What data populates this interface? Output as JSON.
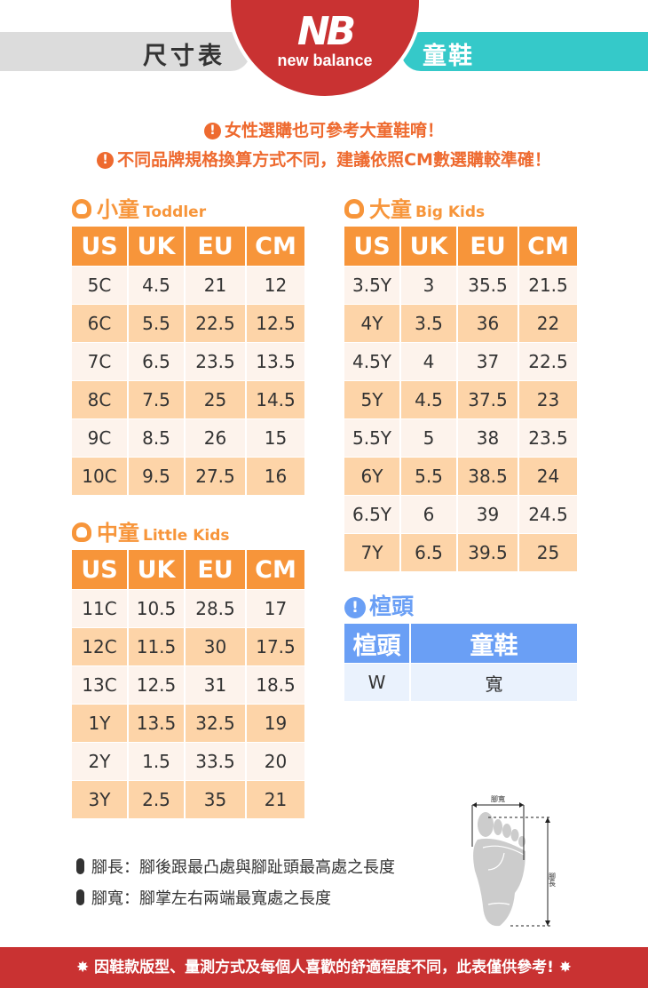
{
  "header": {
    "title": "尺寸表",
    "category": "童鞋",
    "brand_logo": "NB",
    "brand_name": "new balance"
  },
  "notes": [
    "女性選購也可參考大童鞋唷！",
    "不同品牌規格換算方式不同，建議依照CM數選購較準確！"
  ],
  "columns": [
    "US",
    "UK",
    "EU",
    "CM"
  ],
  "toddler": {
    "title": "小童",
    "subtitle": "Toddler",
    "rows": [
      [
        "5C",
        "4.5",
        "21",
        "12"
      ],
      [
        "6C",
        "5.5",
        "22.5",
        "12.5"
      ],
      [
        "7C",
        "6.5",
        "23.5",
        "13.5"
      ],
      [
        "8C",
        "7.5",
        "25",
        "14.5"
      ],
      [
        "9C",
        "8.5",
        "26",
        "15"
      ],
      [
        "10C",
        "9.5",
        "27.5",
        "16"
      ]
    ]
  },
  "little_kids": {
    "title": "中童",
    "subtitle": "Little Kids",
    "rows": [
      [
        "11C",
        "10.5",
        "28.5",
        "17"
      ],
      [
        "12C",
        "11.5",
        "30",
        "17.5"
      ],
      [
        "13C",
        "12.5",
        "31",
        "18.5"
      ],
      [
        "1Y",
        "13.5",
        "32.5",
        "19"
      ],
      [
        "2Y",
        "1.5",
        "33.5",
        "20"
      ],
      [
        "3Y",
        "2.5",
        "35",
        "21"
      ]
    ]
  },
  "big_kids": {
    "title": "大童",
    "subtitle": "Big Kids",
    "rows": [
      [
        "3.5Y",
        "3",
        "35.5",
        "21.5"
      ],
      [
        "4Y",
        "3.5",
        "36",
        "22"
      ],
      [
        "4.5Y",
        "4",
        "37",
        "22.5"
      ],
      [
        "5Y",
        "4.5",
        "37.5",
        "23"
      ],
      [
        "5.5Y",
        "5",
        "38",
        "23.5"
      ],
      [
        "6Y",
        "5.5",
        "38.5",
        "24"
      ],
      [
        "6.5Y",
        "6",
        "39",
        "24.5"
      ],
      [
        "7Y",
        "6.5",
        "39.5",
        "25"
      ]
    ]
  },
  "width": {
    "title": "楦頭",
    "headers": [
      "楦頭",
      "童鞋"
    ],
    "rows": [
      [
        "W",
        "寬"
      ]
    ]
  },
  "definitions": [
    "腳長：腳後跟最凸處與腳趾頭最高處之長度",
    "腳寬：腳掌左右兩端最寬處之長度"
  ],
  "foot_diagram": {
    "width_label": "腳寬",
    "length_label": "腳長"
  },
  "footer": "因鞋款版型、量測方式及每個人喜歡的舒適程度不同，此表僅供參考!",
  "colors": {
    "red": "#c93232",
    "teal": "#35c9c9",
    "orange": "#f7953a",
    "note": "#ee6a2f",
    "blue": "#6a9ff5"
  }
}
